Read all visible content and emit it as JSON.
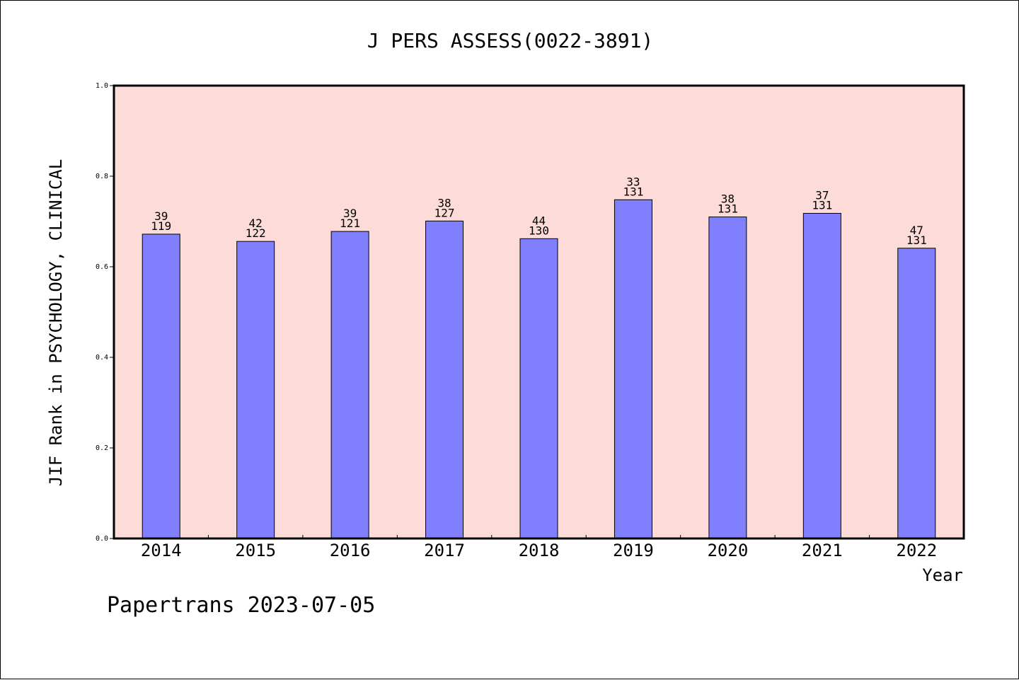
{
  "chart_data": {
    "type": "bar",
    "title": "J PERS ASSESS(0022-3891)",
    "ylabel": "JIF Rank in PSYCHOLOGY, CLINICAL",
    "xlabel": "Year",
    "ylim": [
      0,
      1.0
    ],
    "yticks": [
      "0.0",
      "0.2",
      "0.4",
      "0.6",
      "0.8",
      "1.0"
    ],
    "categories": [
      "2014",
      "2015",
      "2016",
      "2017",
      "2018",
      "2019",
      "2020",
      "2021",
      "2022"
    ],
    "values": [
      0.672,
      0.656,
      0.678,
      0.701,
      0.662,
      0.748,
      0.71,
      0.718,
      0.641
    ],
    "ranks": [
      "39",
      "42",
      "39",
      "38",
      "44",
      "33",
      "38",
      "37",
      "47"
    ],
    "totals": [
      "119",
      "122",
      "121",
      "127",
      "130",
      "131",
      "131",
      "131",
      "131"
    ],
    "grid": false,
    "colors": {
      "plot_background": "#fddbd8",
      "bar_fill": "#8080ff",
      "axis": "#000000"
    }
  },
  "footer": "Papertrans 2023-07-05"
}
